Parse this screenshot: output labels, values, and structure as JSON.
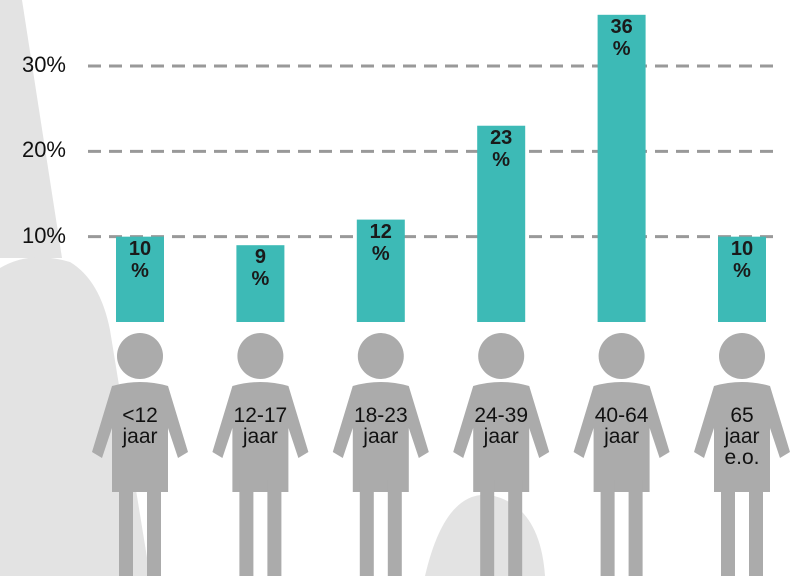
{
  "chart_data": {
    "type": "bar",
    "categories": [
      "<12 jaar",
      "12-17 jaar",
      "18-23 jaar",
      "24-39 jaar",
      "40-64 jaar",
      "65 jaar e.o."
    ],
    "values": [
      10,
      9,
      12,
      23,
      36,
      10
    ],
    "value_labels": [
      "10 %",
      "9 %",
      "12 %",
      "23 %",
      "36 %",
      "10 %"
    ],
    "color": "#3dbab6",
    "ylim": [
      0,
      30
    ],
    "yticks": [
      {
        "value": 10,
        "label": "10%"
      },
      {
        "value": 20,
        "label": "20%"
      },
      {
        "value": 30,
        "label": "30%"
      }
    ],
    "grid": true
  }
}
